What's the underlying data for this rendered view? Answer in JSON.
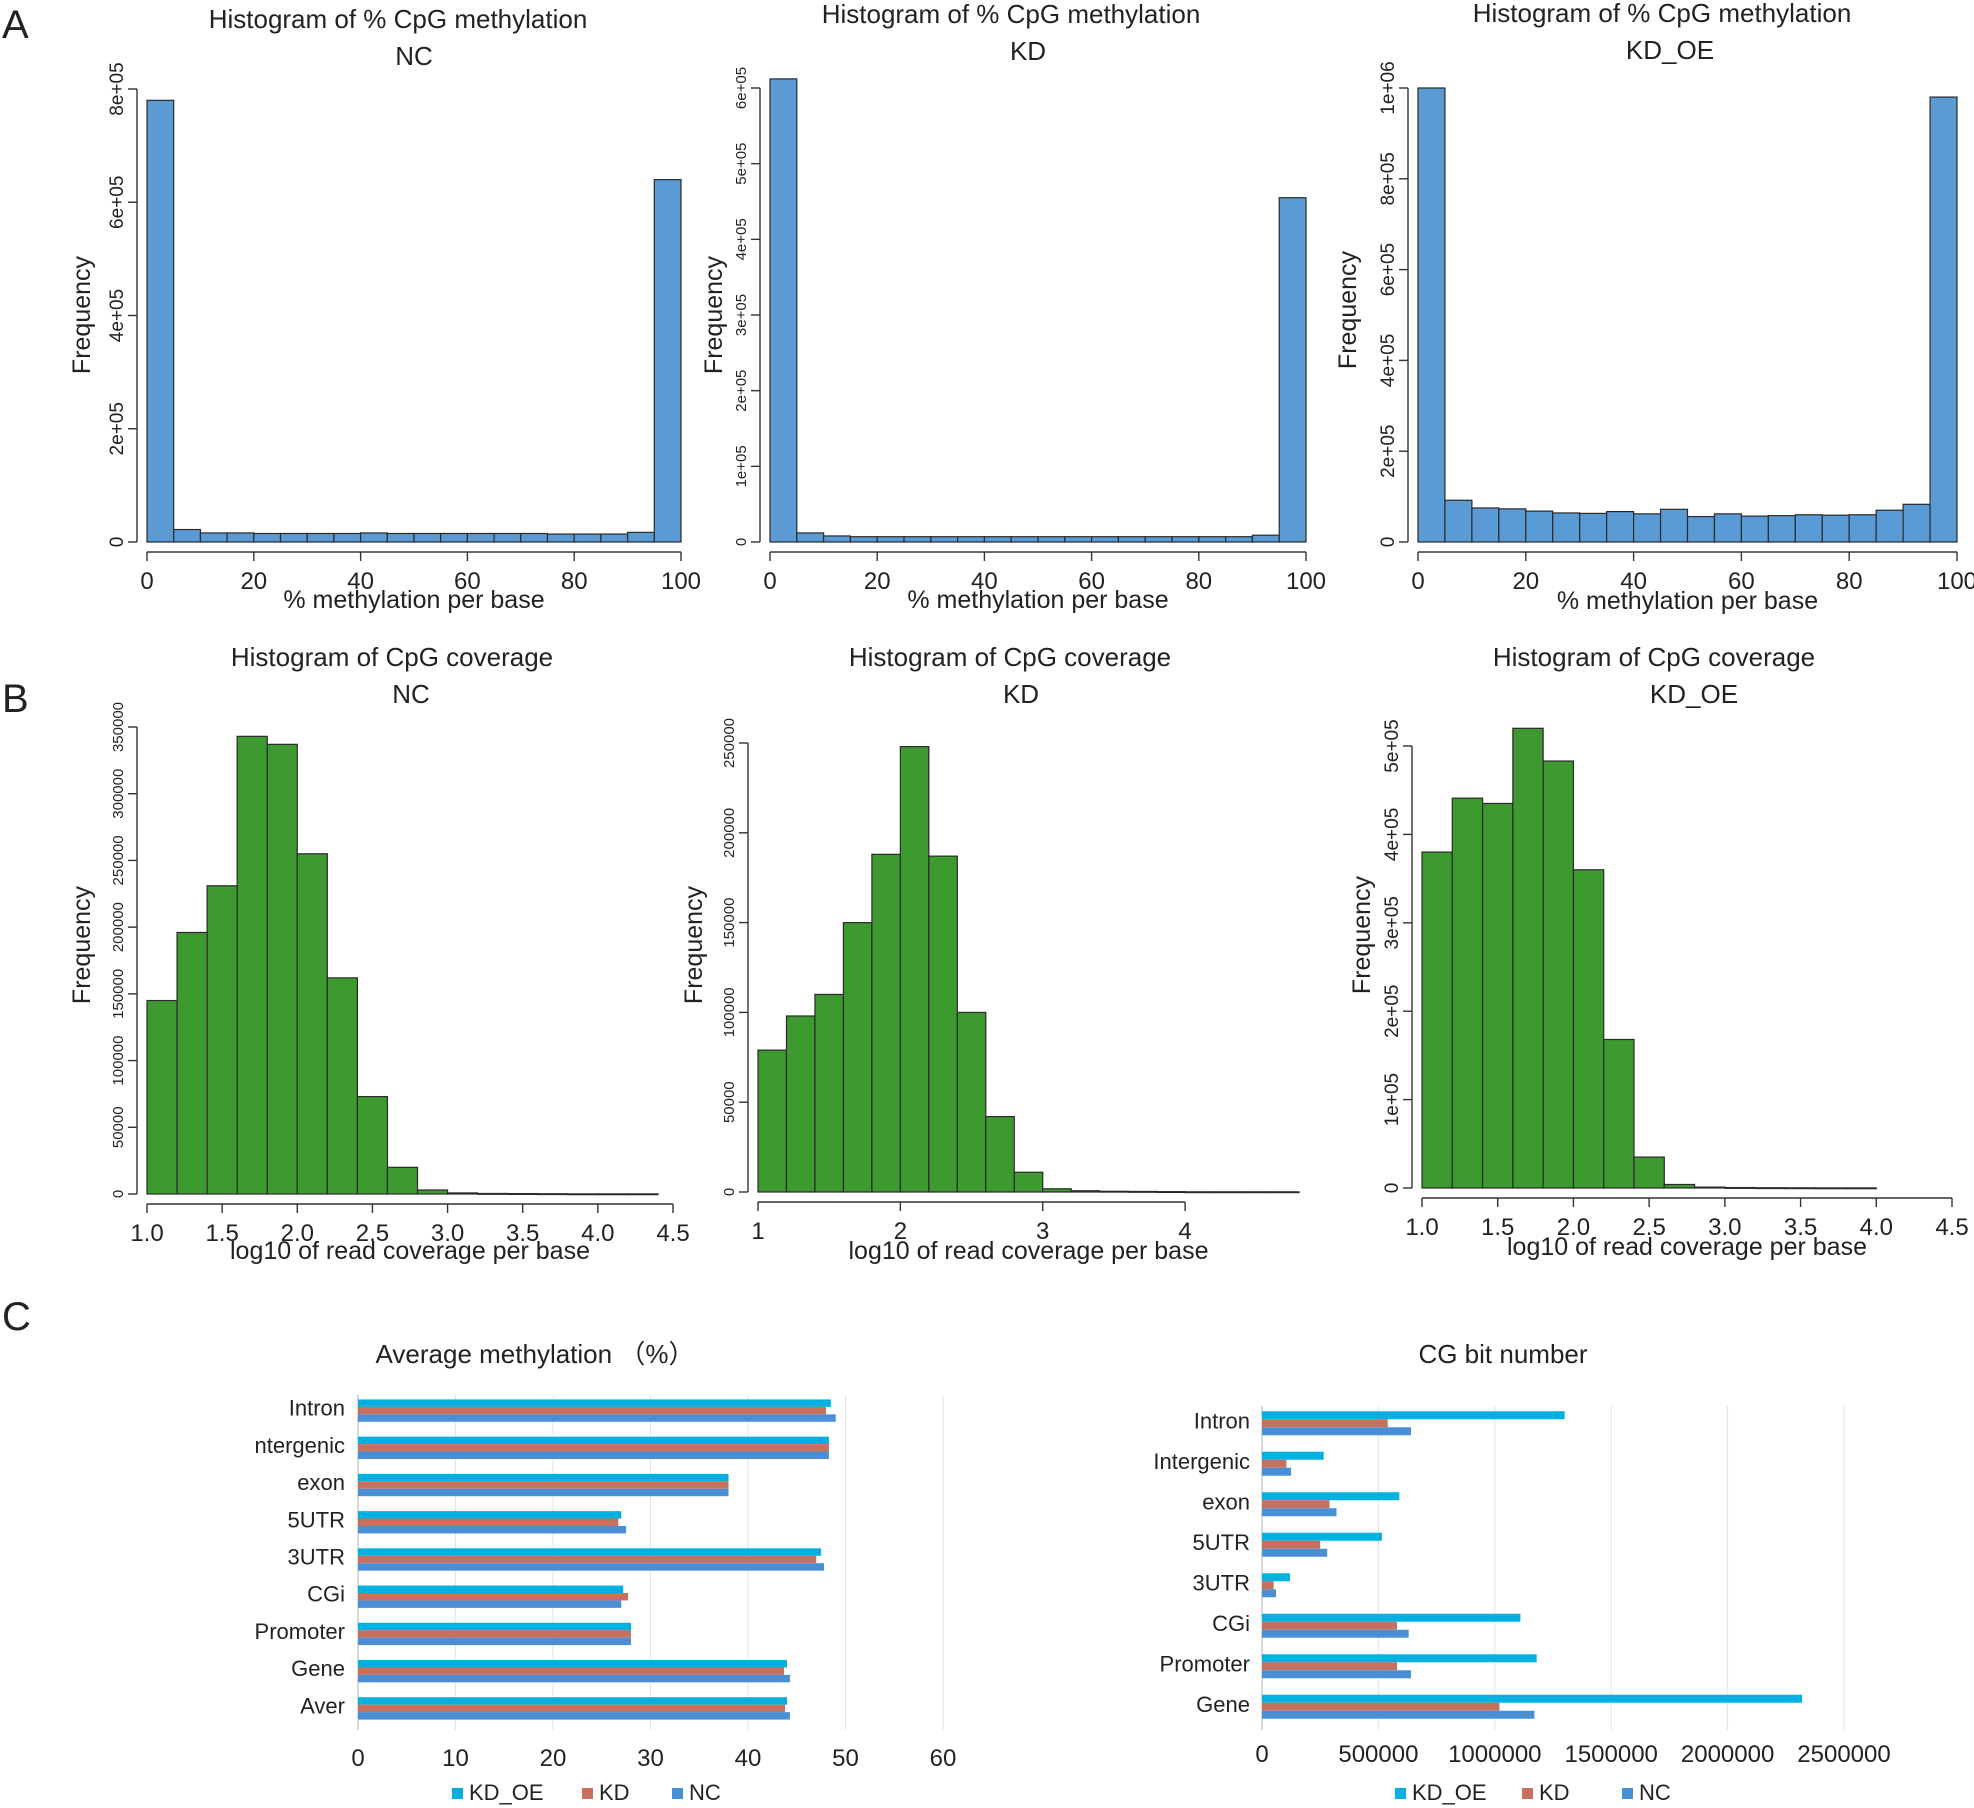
{
  "panel_labels": [
    "A",
    "B",
    "C"
  ],
  "colors": {
    "hist_methylation": "#5b9bd5",
    "hist_coverage": "#3d9a2f",
    "KD_OE": "#00b0e0",
    "KD": "#c8705e",
    "NC": "#4a8fd6"
  },
  "chart_data": [
    {
      "id": "meth_nc",
      "type": "bar",
      "title": "Histogram of % CpG methylation",
      "subtitle": "NC",
      "xlabel": "% methylation per base",
      "ylabel": "Frequency",
      "xlim": [
        0,
        100
      ],
      "ylim": [
        0,
        800000
      ],
      "xticks": [
        0,
        20,
        40,
        60,
        80,
        100
      ],
      "xtick_labels": [
        "0",
        "20",
        "40",
        "60",
        "80",
        "100"
      ],
      "yticks": [
        0,
        200000,
        400000,
        600000,
        800000
      ],
      "ytick_labels": [
        "0",
        "2e+05",
        "4e+05",
        "6e+05",
        "8e+05"
      ],
      "bin_width": 5,
      "values": [
        780000,
        22000,
        16000,
        16000,
        15000,
        15000,
        15000,
        15000,
        16000,
        15000,
        15000,
        15000,
        15000,
        15000,
        15000,
        14000,
        14000,
        14000,
        17000,
        640000
      ]
    },
    {
      "id": "meth_kd",
      "type": "bar",
      "title": "Histogram of % CpG methylation",
      "subtitle": "KD",
      "xlabel": "% methylation per base",
      "ylabel": "Frequency",
      "xlim": [
        0,
        100
      ],
      "ylim": [
        0,
        600000
      ],
      "xticks": [
        0,
        20,
        40,
        60,
        80,
        100
      ],
      "xtick_labels": [
        "0",
        "20",
        "40",
        "60",
        "80",
        "100"
      ],
      "yticks": [
        0,
        100000,
        200000,
        300000,
        400000,
        500000,
        600000
      ],
      "ytick_labels": [
        "0",
        "1e+05",
        "2e+05",
        "3e+05",
        "4e+05",
        "5e+05",
        "6e+05"
      ],
      "bin_width": 5,
      "values": [
        612000,
        12000,
        8000,
        7000,
        7000,
        7000,
        7000,
        7000,
        7000,
        7000,
        7000,
        7000,
        7000,
        7000,
        7000,
        7000,
        7000,
        7000,
        9000,
        455000
      ]
    },
    {
      "id": "meth_kdoe",
      "type": "bar",
      "title": "Histogram of % CpG methylation",
      "subtitle": "KD_OE",
      "xlabel": "% methylation per base",
      "ylabel": "Frequency",
      "xlim": [
        0,
        100
      ],
      "ylim": [
        0,
        1000000
      ],
      "xticks": [
        0,
        20,
        40,
        60,
        80,
        100
      ],
      "xtick_labels": [
        "0",
        "20",
        "40",
        "60",
        "80",
        "100"
      ],
      "yticks": [
        0,
        200000,
        400000,
        600000,
        800000,
        1000000
      ],
      "ytick_labels": [
        "0",
        "2e+05",
        "4e+05",
        "6e+05",
        "8e+05",
        "1e+06"
      ],
      "bin_width": 5,
      "values": [
        1000000,
        92000,
        75000,
        73000,
        68000,
        64000,
        63000,
        67000,
        62000,
        72000,
        56000,
        62000,
        57000,
        58000,
        60000,
        59000,
        60000,
        70000,
        83000,
        980000
      ]
    },
    {
      "id": "cov_nc",
      "type": "bar",
      "title": "Histogram of CpG coverage",
      "subtitle": "NC",
      "xlabel": "log10 of read coverage per base",
      "ylabel": "Frequency",
      "xlim": [
        1.0,
        4.5
      ],
      "ylim": [
        0,
        350000
      ],
      "xticks": [
        1.0,
        1.5,
        2.0,
        2.5,
        3.0,
        3.5,
        4.0,
        4.5
      ],
      "xtick_labels": [
        "1.0",
        "1.5",
        "2.0",
        "2.5",
        "3.0",
        "3.5",
        "4.0",
        "4.5"
      ],
      "yticks": [
        0,
        50000,
        100000,
        150000,
        200000,
        250000,
        300000,
        350000
      ],
      "ytick_labels": [
        "0",
        "50000",
        "100000",
        "150000",
        "200000",
        "250000",
        "300000",
        "350000"
      ],
      "bin_width": 0.2,
      "values": [
        145000,
        196000,
        231000,
        343000,
        337000,
        255000,
        162000,
        73000,
        20000,
        3000,
        800,
        400,
        300,
        200,
        100,
        100,
        100
      ]
    },
    {
      "id": "cov_kd",
      "type": "bar",
      "title": "Histogram of CpG coverage",
      "subtitle": "KD",
      "xlabel": "log10 of read coverage per base",
      "ylabel": "Frequency",
      "xlim": [
        1,
        4.8
      ],
      "ylim": [
        0,
        250000
      ],
      "xticks": [
        1,
        2,
        3,
        4
      ],
      "xtick_labels": [
        "1",
        "2",
        "3",
        "4"
      ],
      "yticks": [
        0,
        50000,
        100000,
        150000,
        200000,
        250000
      ],
      "ytick_labels": [
        "0",
        "50000",
        "100000",
        "150000",
        "200000",
        "250000"
      ],
      "bin_width": 0.2,
      "values": [
        79000,
        98000,
        110000,
        150000,
        188000,
        248000,
        187000,
        100000,
        42000,
        11000,
        1800,
        700,
        400,
        300,
        200,
        100,
        100,
        100,
        100
      ]
    },
    {
      "id": "cov_kdoe",
      "type": "bar",
      "title": "Histogram of CpG coverage",
      "subtitle": "KD_OE",
      "xlabel": "log10 of read coverage per base",
      "ylabel": "Frequency",
      "xlim": [
        1.0,
        4.5
      ],
      "ylim": [
        0,
        500000
      ],
      "xticks": [
        1.0,
        1.5,
        2.0,
        2.5,
        3.0,
        3.5,
        4.0,
        4.5
      ],
      "xtick_labels": [
        "1.0",
        "1.5",
        "2.0",
        "2.5",
        "3.0",
        "3.5",
        "4.0",
        "4.5"
      ],
      "yticks": [
        0,
        100000,
        200000,
        300000,
        400000,
        500000
      ],
      "ytick_labels": [
        "0",
        "1e+05",
        "2e+05",
        "3e+05",
        "4e+05",
        "5e+05"
      ],
      "bin_width": 0.2,
      "values": [
        380000,
        441000,
        435000,
        520000,
        483000,
        360000,
        168000,
        35000,
        4000,
        1000,
        500,
        300,
        200,
        100,
        100
      ]
    },
    {
      "id": "avg_meth",
      "type": "bar",
      "orientation": "horizontal",
      "title": "Average methylation （%）",
      "categories": [
        "Intron",
        "ntergenic",
        "exon",
        "5UTR",
        "3UTR",
        "CGi",
        "Promoter",
        "Gene",
        "Aver"
      ],
      "xlim": [
        0,
        60
      ],
      "xticks": [
        0,
        10,
        20,
        30,
        40,
        50,
        60
      ],
      "xtick_labels": [
        "0",
        "10",
        "20",
        "30",
        "40",
        "50",
        "60"
      ],
      "grid": true,
      "legend": "bottom",
      "series": [
        {
          "name": "KD_OE",
          "values": [
            48.5,
            48.3,
            38.0,
            27.0,
            47.5,
            27.2,
            28.0,
            44.0,
            44.0
          ]
        },
        {
          "name": "KD",
          "values": [
            48.0,
            48.3,
            38.0,
            26.7,
            47.0,
            27.7,
            28.0,
            43.7,
            43.8
          ]
        },
        {
          "name": "NC",
          "values": [
            49.0,
            48.3,
            38.0,
            27.5,
            47.8,
            27.0,
            28.0,
            44.3,
            44.3
          ]
        }
      ]
    },
    {
      "id": "cg_bits",
      "type": "bar",
      "orientation": "horizontal",
      "title": "CG bit number",
      "categories": [
        "Intron",
        "Intergenic",
        "exon",
        "5UTR",
        "3UTR",
        "CGi",
        "Promoter",
        "Gene"
      ],
      "xlim": [
        0,
        2500000
      ],
      "xticks": [
        0,
        500000,
        1000000,
        1500000,
        2000000,
        2500000
      ],
      "xtick_labels": [
        "0",
        "500000",
        "1000000",
        "1500000",
        "2000000",
        "2500000"
      ],
      "grid": true,
      "legend": "bottom",
      "series": [
        {
          "name": "KD_OE",
          "values": [
            1300000,
            265000,
            590000,
            515000,
            120000,
            1110000,
            1180000,
            2320000
          ]
        },
        {
          "name": "KD",
          "values": [
            540000,
            105000,
            290000,
            250000,
            50000,
            580000,
            580000,
            1020000
          ]
        },
        {
          "name": "NC",
          "values": [
            640000,
            125000,
            320000,
            280000,
            60000,
            630000,
            640000,
            1170000
          ]
        }
      ]
    }
  ]
}
